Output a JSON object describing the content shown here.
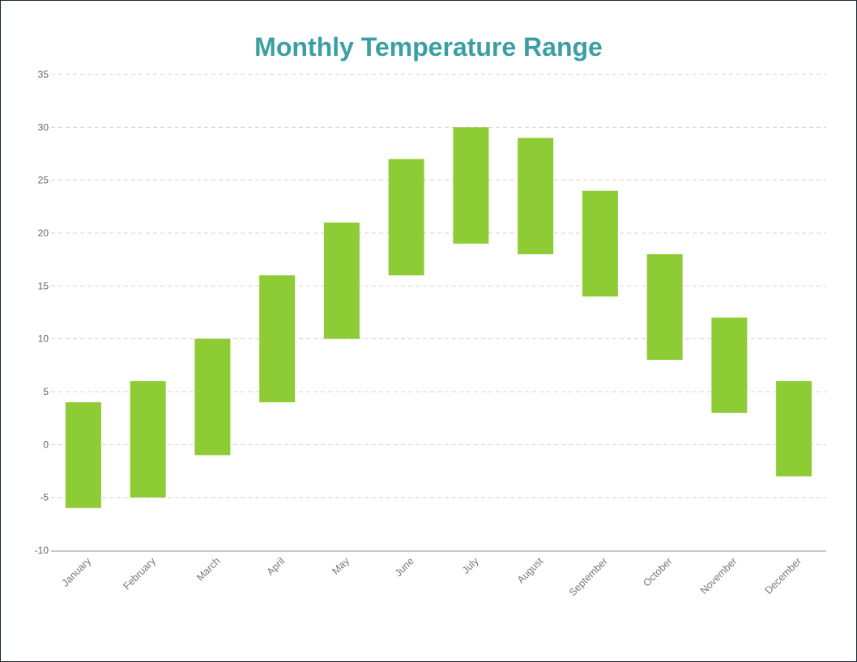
{
  "chart_data": {
    "type": "bar",
    "subtype": "floating-range",
    "title": "Monthly Temperature Range",
    "xlabel": "",
    "ylabel": "",
    "categories": [
      "January",
      "February",
      "March",
      "April",
      "May",
      "June",
      "July",
      "August",
      "September",
      "October",
      "November",
      "December"
    ],
    "series": [
      {
        "low": [
          -6,
          -5,
          -1,
          4,
          10,
          16,
          19,
          18,
          14,
          8,
          3,
          -3
        ],
        "high": [
          4,
          6,
          10,
          16,
          21,
          27,
          30,
          29,
          24,
          18,
          12,
          6
        ]
      }
    ],
    "ylim": [
      -10,
      35
    ],
    "yticks": [
      -10,
      -5,
      0,
      5,
      10,
      15,
      20,
      25,
      30,
      35
    ],
    "grid": true,
    "legend": "none",
    "colors": {
      "bar": "#8dcc35",
      "title": "#3a9fa3",
      "grid": "#d3d3d3",
      "axis": "#c8c8c8"
    }
  }
}
